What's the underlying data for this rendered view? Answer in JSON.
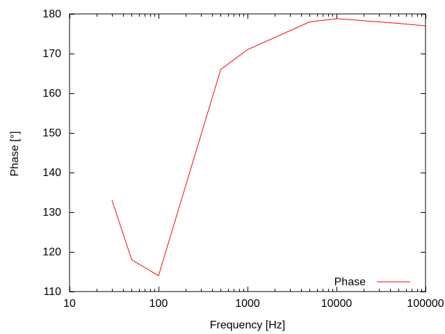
{
  "chart_data": {
    "type": "line",
    "title": "",
    "xlabel": "Frequency [Hz]",
    "ylabel": "Phase [°]",
    "x_scale": "log",
    "xlim": [
      10,
      100000
    ],
    "ylim": [
      110,
      180
    ],
    "x_ticks": {
      "values": [
        10,
        100,
        1000,
        10000,
        100000
      ],
      "labels": [
        "10",
        "100",
        "1000",
        "10000",
        "100000"
      ]
    },
    "x_minor_ticks": "log-2-to-9-per-decade",
    "y_ticks": {
      "values": [
        110,
        120,
        130,
        140,
        150,
        160,
        170,
        180
      ],
      "labels": [
        "110",
        "120",
        "130",
        "140",
        "150",
        "160",
        "170",
        "180"
      ]
    },
    "grid": false,
    "ticks_mirrored": true,
    "legend": {
      "position": "inside-bottom-right",
      "entries": [
        {
          "label": "Phase",
          "color": "#ff0000"
        }
      ]
    },
    "series": [
      {
        "name": "Phase",
        "color": "#ff0000",
        "x": [
          30,
          50,
          100,
          500,
          1000,
          5000,
          10000,
          20000,
          50000,
          100000
        ],
        "y": [
          133,
          118,
          114,
          166,
          171,
          178,
          178.8,
          178.3,
          177.6,
          177
        ]
      }
    ]
  },
  "colors": {
    "background": "#ffffff",
    "axis": "#000000",
    "text": "#000000",
    "line": "#ff0000"
  }
}
